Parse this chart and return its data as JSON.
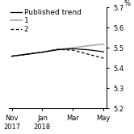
{
  "title": "",
  "xlabel": "",
  "ylabel": "%",
  "ylim": [
    5.2,
    5.7
  ],
  "yticks": [
    5.2,
    5.3,
    5.4,
    5.5,
    5.6,
    5.7
  ],
  "xtick_labels": [
    "Nov\n2017",
    "Jan\n2018",
    "Mar",
    "May"
  ],
  "xtick_positions": [
    0,
    2,
    4,
    6
  ],
  "published_trend": {
    "x": [
      0,
      1,
      2,
      3,
      4,
      5,
      6
    ],
    "y": [
      5.458,
      5.468,
      5.478,
      5.49,
      5.495,
      5.49,
      5.48
    ],
    "color": "#000000",
    "linewidth": 0.9,
    "linestyle": "solid",
    "label": "Published trend"
  },
  "scenario1": {
    "x": [
      0,
      1,
      2,
      3,
      4,
      5,
      6
    ],
    "y": [
      5.458,
      5.468,
      5.478,
      5.492,
      5.5,
      5.51,
      5.518
    ],
    "color": "#aaaaaa",
    "linewidth": 1.2,
    "linestyle": "solid",
    "label": "1"
  },
  "scenario2": {
    "x": [
      0,
      1,
      2,
      3,
      4,
      5,
      6
    ],
    "y": [
      5.458,
      5.468,
      5.478,
      5.492,
      5.488,
      5.468,
      5.448
    ],
    "color": "#000000",
    "linewidth": 0.9,
    "linestyle": "dashed",
    "label": "2"
  },
  "legend_fontsize": 6.5,
  "tick_fontsize": 6.0,
  "figsize": [
    1.66,
    1.66
  ],
  "dpi": 100
}
